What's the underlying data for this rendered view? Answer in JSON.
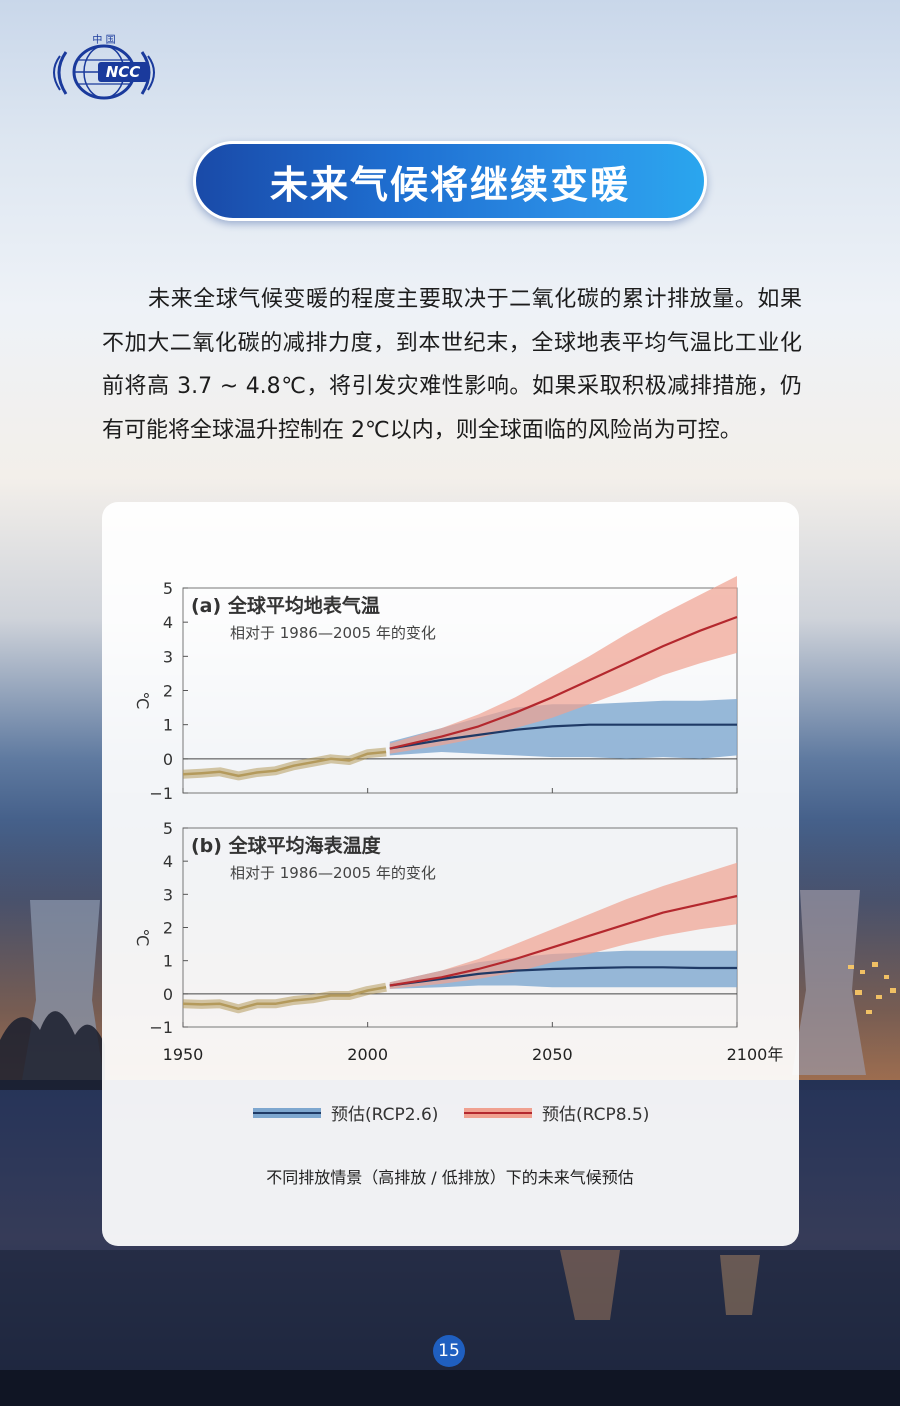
{
  "header": {
    "logo_top_text": "中 国",
    "logo_text": "NCC",
    "title": "未来气候将继续变暖"
  },
  "body_text": "未来全球气候变暖的程度主要取决于二氧化碳的累计排放量。如果不加大二氧化碳的减排力度，到本世纪末，全球地表平均气温比工业化前将高 3.7 ~ 4.8℃，将引发灾难性影响。如果采取积极减排措施，仍有可能将全球温升控制在 2℃以内，则全球面临的风险尚为可控。",
  "page_number": "15",
  "colors": {
    "historical": "#b49a5c",
    "rcp26": "#1f3a66",
    "rcp26_band": "#7ea7cf",
    "rcp85": "#b4282e",
    "rcp85_band": "#f0a190",
    "title_blue": "#1e6fd1"
  },
  "chart_data": [
    {
      "type": "line",
      "panel_label": "(a)",
      "title": "全球平均地表气温",
      "subtitle": "相对于 1986—2005 年的变化",
      "ylabel": "℃",
      "ylim": [
        -1,
        5
      ],
      "yticks": [
        "5",
        "4",
        "3",
        "2",
        "1",
        "0",
        "−1"
      ],
      "xlim": [
        1950,
        2100
      ],
      "series": [
        {
          "kind": "historical",
          "x": [
            1950,
            1955,
            1960,
            1965,
            1970,
            1975,
            1980,
            1985,
            1990,
            1995,
            2000,
            2005
          ],
          "values": [
            -0.45,
            -0.42,
            -0.38,
            -0.5,
            -0.4,
            -0.35,
            -0.2,
            -0.1,
            0.0,
            -0.05,
            0.15,
            0.2
          ]
        },
        {
          "kind": "rcp26",
          "name": "预估(RCP2.6)",
          "x": [
            2006,
            2020,
            2030,
            2040,
            2050,
            2060,
            2070,
            2080,
            2090,
            2100
          ],
          "values": [
            0.3,
            0.55,
            0.7,
            0.85,
            0.95,
            1.0,
            1.0,
            1.0,
            1.0,
            1.0
          ],
          "lower": [
            0.1,
            0.2,
            0.15,
            0.1,
            0.05,
            0.05,
            0.0,
            0.05,
            0.0,
            0.1
          ],
          "upper": [
            0.5,
            0.9,
            1.2,
            1.5,
            1.6,
            1.6,
            1.65,
            1.7,
            1.7,
            1.75
          ]
        },
        {
          "kind": "rcp85",
          "name": "预估(RCP8.5)",
          "x": [
            2006,
            2020,
            2030,
            2040,
            2050,
            2060,
            2070,
            2080,
            2090,
            2100
          ],
          "values": [
            0.3,
            0.65,
            0.95,
            1.35,
            1.8,
            2.3,
            2.8,
            3.3,
            3.75,
            4.15
          ],
          "lower": [
            0.15,
            0.4,
            0.6,
            0.9,
            1.2,
            1.6,
            2.0,
            2.45,
            2.8,
            3.1
          ],
          "upper": [
            0.45,
            0.9,
            1.3,
            1.8,
            2.4,
            3.0,
            3.65,
            4.25,
            4.8,
            5.35
          ]
        }
      ]
    },
    {
      "type": "line",
      "panel_label": "(b)",
      "title": "全球平均海表温度",
      "subtitle": "相对于 1986—2005 年的变化",
      "ylabel": "℃",
      "ylim": [
        -1,
        5
      ],
      "yticks": [
        "5",
        "4",
        "3",
        "2",
        "1",
        "0",
        "−1"
      ],
      "xlim": [
        1950,
        2100
      ],
      "xticks": [
        1950,
        2000,
        2050,
        2100
      ],
      "xtick_labels": [
        "1950",
        "2000",
        "2050",
        "2100年"
      ],
      "series": [
        {
          "kind": "historical",
          "x": [
            1950,
            1955,
            1960,
            1965,
            1970,
            1975,
            1980,
            1985,
            1990,
            1995,
            2000,
            2005
          ],
          "values": [
            -0.3,
            -0.32,
            -0.3,
            -0.45,
            -0.3,
            -0.3,
            -0.2,
            -0.15,
            -0.05,
            -0.05,
            0.1,
            0.2
          ]
        },
        {
          "kind": "rcp26",
          "name": "预估(RCP2.6)",
          "x": [
            2006,
            2020,
            2030,
            2040,
            2050,
            2060,
            2070,
            2080,
            2090,
            2100
          ],
          "values": [
            0.25,
            0.45,
            0.6,
            0.7,
            0.75,
            0.78,
            0.8,
            0.8,
            0.78,
            0.78
          ],
          "lower": [
            0.15,
            0.2,
            0.25,
            0.25,
            0.2,
            0.2,
            0.2,
            0.2,
            0.2,
            0.2
          ],
          "upper": [
            0.35,
            0.7,
            0.95,
            1.1,
            1.2,
            1.25,
            1.3,
            1.3,
            1.3,
            1.3
          ]
        },
        {
          "kind": "rcp85",
          "name": "预估(RCP8.5)",
          "x": [
            2006,
            2020,
            2030,
            2040,
            2050,
            2060,
            2070,
            2080,
            2090,
            2100
          ],
          "values": [
            0.25,
            0.5,
            0.75,
            1.05,
            1.4,
            1.75,
            2.1,
            2.45,
            2.7,
            2.95
          ],
          "lower": [
            0.15,
            0.3,
            0.45,
            0.65,
            0.95,
            1.2,
            1.5,
            1.75,
            1.95,
            2.1
          ],
          "upper": [
            0.35,
            0.7,
            1.05,
            1.5,
            1.95,
            2.4,
            2.85,
            3.25,
            3.6,
            3.95
          ]
        }
      ]
    }
  ],
  "legend": {
    "rcp26_label": "预估(RCP2.6)",
    "rcp85_label": "预估(RCP8.5)"
  },
  "caption": "不同排放情景（高排放 / 低排放）下的未来气候预估"
}
